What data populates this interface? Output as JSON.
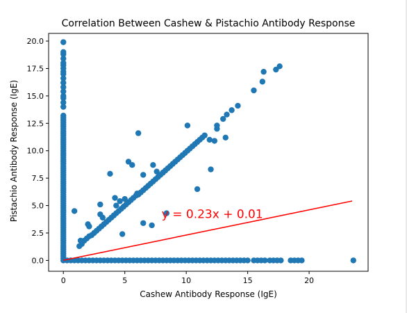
{
  "chart_data": {
    "type": "scatter",
    "title": "Correlation Between Cashew & Pistachio Antibody Response",
    "xlabel": "Cashew Antibody Response (IgE)",
    "ylabel": "Pistachio Antibody Response (IgE)",
    "xlim": [
      -1.2,
      24.8
    ],
    "ylim": [
      -0.99,
      20.7
    ],
    "xticks": [
      0,
      5,
      10,
      15,
      20
    ],
    "yticks": [
      0.0,
      2.5,
      5.0,
      7.5,
      10.0,
      12.5,
      15.0,
      17.5,
      20.0
    ],
    "xtick_labels": [
      "0",
      "5",
      "10",
      "15",
      "20"
    ],
    "ytick_labels": [
      "0.0",
      "2.5",
      "5.0",
      "7.5",
      "10.0",
      "12.5",
      "15.0",
      "17.5",
      "20.0"
    ],
    "point_color": "#1f77b4",
    "fit_line": {
      "slope": 0.23,
      "intercept": 0.01,
      "x_range": [
        0,
        23.5
      ],
      "color": "#ff0000",
      "label": "y = 0.23x + 0.01",
      "label_at": [
        8,
        4.3
      ]
    },
    "points": [
      [
        0,
        0
      ],
      [
        0,
        0.2
      ],
      [
        0,
        0.4
      ],
      [
        0,
        0.6
      ],
      [
        0,
        0.8
      ],
      [
        0,
        1.0
      ],
      [
        0,
        1.2
      ],
      [
        0,
        1.4
      ],
      [
        0,
        1.6
      ],
      [
        0,
        1.8
      ],
      [
        0,
        2.0
      ],
      [
        0,
        2.2
      ],
      [
        0,
        2.4
      ],
      [
        0,
        2.6
      ],
      [
        0,
        2.8
      ],
      [
        0,
        3.0
      ],
      [
        0,
        3.2
      ],
      [
        0,
        3.4
      ],
      [
        0,
        3.6
      ],
      [
        0,
        3.8
      ],
      [
        0,
        4.0
      ],
      [
        0,
        4.2
      ],
      [
        0,
        4.4
      ],
      [
        0,
        4.6
      ],
      [
        0,
        4.8
      ],
      [
        0,
        5.0
      ],
      [
        0,
        5.2
      ],
      [
        0,
        5.4
      ],
      [
        0,
        5.6
      ],
      [
        0,
        5.8
      ],
      [
        0,
        6.0
      ],
      [
        0,
        6.2
      ],
      [
        0,
        6.4
      ],
      [
        0,
        6.6
      ],
      [
        0,
        6.8
      ],
      [
        0,
        7.0
      ],
      [
        0,
        7.2
      ],
      [
        0,
        7.4
      ],
      [
        0,
        7.6
      ],
      [
        0,
        7.8
      ],
      [
        0,
        8.0
      ],
      [
        0,
        8.2
      ],
      [
        0,
        8.4
      ],
      [
        0,
        8.6
      ],
      [
        0,
        8.8
      ],
      [
        0,
        9.0
      ],
      [
        0,
        9.2
      ],
      [
        0,
        9.4
      ],
      [
        0,
        9.6
      ],
      [
        0,
        9.8
      ],
      [
        0,
        10.0
      ],
      [
        0,
        10.2
      ],
      [
        0,
        10.4
      ],
      [
        0,
        10.6
      ],
      [
        0,
        10.8
      ],
      [
        0,
        11.0
      ],
      [
        0,
        11.2
      ],
      [
        0,
        11.4
      ],
      [
        0,
        11.6
      ],
      [
        0,
        11.8
      ],
      [
        0,
        12.0
      ],
      [
        0,
        12.2
      ],
      [
        0,
        12.4
      ],
      [
        0,
        12.6
      ],
      [
        0,
        12.8
      ],
      [
        0,
        13.0
      ],
      [
        0,
        13.2
      ],
      [
        0,
        14.0
      ],
      [
        0,
        14.4
      ],
      [
        0,
        14.8
      ],
      [
        0,
        15.0
      ],
      [
        0,
        15.4
      ],
      [
        0,
        15.8
      ],
      [
        0,
        16.2
      ],
      [
        0,
        16.6
      ],
      [
        0,
        17.0
      ],
      [
        0,
        17.2
      ],
      [
        0,
        17.5
      ],
      [
        0,
        17.8
      ],
      [
        0,
        18.0
      ],
      [
        0,
        18.4
      ],
      [
        0,
        18.8
      ],
      [
        0,
        19.0
      ],
      [
        0,
        19.9
      ],
      [
        0.3,
        0
      ],
      [
        0.6,
        0
      ],
      [
        0.9,
        0
      ],
      [
        1.2,
        0
      ],
      [
        1.5,
        0
      ],
      [
        1.8,
        0
      ],
      [
        2.1,
        0
      ],
      [
        2.4,
        0
      ],
      [
        2.7,
        0
      ],
      [
        3.0,
        0
      ],
      [
        3.3,
        0
      ],
      [
        3.6,
        0
      ],
      [
        3.9,
        0
      ],
      [
        4.2,
        0
      ],
      [
        4.5,
        0
      ],
      [
        4.8,
        0
      ],
      [
        5.1,
        0
      ],
      [
        5.4,
        0
      ],
      [
        5.7,
        0
      ],
      [
        6.0,
        0
      ],
      [
        6.3,
        0
      ],
      [
        6.6,
        0
      ],
      [
        6.9,
        0
      ],
      [
        7.2,
        0
      ],
      [
        7.5,
        0
      ],
      [
        7.8,
        0
      ],
      [
        8.1,
        0
      ],
      [
        8.4,
        0
      ],
      [
        8.7,
        0
      ],
      [
        9.0,
        0
      ],
      [
        9.3,
        0
      ],
      [
        9.6,
        0
      ],
      [
        9.9,
        0
      ],
      [
        10.2,
        0
      ],
      [
        10.5,
        0
      ],
      [
        10.8,
        0
      ],
      [
        11.1,
        0
      ],
      [
        11.4,
        0
      ],
      [
        11.7,
        0
      ],
      [
        12.0,
        0
      ],
      [
        12.3,
        0
      ],
      [
        12.6,
        0
      ],
      [
        12.9,
        0
      ],
      [
        13.2,
        0
      ],
      [
        13.5,
        0
      ],
      [
        13.8,
        0
      ],
      [
        14.1,
        0
      ],
      [
        14.4,
        0
      ],
      [
        14.7,
        0
      ],
      [
        15.0,
        0
      ],
      [
        15.5,
        0
      ],
      [
        15.8,
        0
      ],
      [
        16.1,
        0
      ],
      [
        16.4,
        0
      ],
      [
        16.8,
        0
      ],
      [
        17.1,
        0
      ],
      [
        17.4,
        0
      ],
      [
        17.7,
        0
      ],
      [
        18.5,
        0
      ],
      [
        18.8,
        0
      ],
      [
        19.1,
        0
      ],
      [
        19.4,
        0
      ],
      [
        23.6,
        0
      ],
      [
        1.3,
        1.3
      ],
      [
        1.5,
        1.5
      ],
      [
        1.7,
        1.8
      ],
      [
        1.9,
        2.0
      ],
      [
        2.1,
        2.2
      ],
      [
        2.3,
        2.3
      ],
      [
        2.5,
        2.5
      ],
      [
        2.7,
        2.7
      ],
      [
        2.9,
        2.9
      ],
      [
        3.1,
        3.1
      ],
      [
        3.3,
        3.3
      ],
      [
        3.5,
        3.5
      ],
      [
        3.7,
        3.7
      ],
      [
        3.9,
        3.9
      ],
      [
        4.1,
        4.1
      ],
      [
        4.3,
        4.3
      ],
      [
        4.5,
        4.5
      ],
      [
        4.7,
        4.7
      ],
      [
        4.9,
        4.9
      ],
      [
        5.1,
        5.1
      ],
      [
        5.3,
        5.3
      ],
      [
        5.5,
        5.5
      ],
      [
        5.7,
        5.7
      ],
      [
        5.9,
        5.9
      ],
      [
        6.1,
        6.0
      ],
      [
        6.3,
        6.2
      ],
      [
        6.5,
        6.4
      ],
      [
        6.7,
        6.6
      ],
      [
        6.9,
        6.8
      ],
      [
        7.1,
        7.0
      ],
      [
        7.3,
        7.2
      ],
      [
        7.5,
        7.4
      ],
      [
        7.7,
        7.6
      ],
      [
        7.9,
        7.8
      ],
      [
        8.1,
        8.0
      ],
      [
        8.3,
        8.2
      ],
      [
        8.5,
        8.4
      ],
      [
        8.7,
        8.6
      ],
      [
        8.9,
        8.8
      ],
      [
        9.1,
        9.0
      ],
      [
        9.3,
        9.2
      ],
      [
        9.5,
        9.4
      ],
      [
        9.7,
        9.6
      ],
      [
        9.9,
        9.8
      ],
      [
        10.1,
        10.0
      ],
      [
        10.3,
        10.2
      ],
      [
        10.5,
        10.4
      ],
      [
        10.7,
        10.6
      ],
      [
        10.9,
        10.8
      ],
      [
        11.1,
        11.0
      ],
      [
        11.3,
        11.2
      ],
      [
        11.5,
        11.4
      ],
      [
        12.5,
        12.0
      ],
      [
        13.0,
        12.9
      ],
      [
        13.3,
        13.3
      ],
      [
        13.7,
        13.7
      ],
      [
        14.2,
        14.1
      ],
      [
        0.9,
        4.5
      ],
      [
        1.4,
        1.8
      ],
      [
        2.0,
        3.3
      ],
      [
        2.1,
        3.1
      ],
      [
        3.0,
        5.1
      ],
      [
        3.0,
        4.2
      ],
      [
        3.2,
        3.9
      ],
      [
        3.8,
        7.9
      ],
      [
        4.2,
        5.7
      ],
      [
        4.3,
        5.0
      ],
      [
        4.6,
        5.4
      ],
      [
        4.8,
        2.4
      ],
      [
        5.0,
        5.6
      ],
      [
        5.3,
        9.0
      ],
      [
        5.6,
        8.7
      ],
      [
        6.0,
        6.1
      ],
      [
        6.5,
        3.4
      ],
      [
        6.5,
        7.8
      ],
      [
        6.1,
        11.6
      ],
      [
        7.2,
        3.2
      ],
      [
        7.3,
        8.7
      ],
      [
        7.6,
        8.1
      ],
      [
        8.4,
        4.3
      ],
      [
        8.1,
        8.0
      ],
      [
        10.1,
        12.3
      ],
      [
        10.9,
        6.5
      ],
      [
        11.9,
        11.0
      ],
      [
        12.0,
        8.3
      ],
      [
        12.3,
        10.9
      ],
      [
        12.5,
        12.3
      ],
      [
        13.2,
        11.2
      ],
      [
        15.5,
        15.5
      ],
      [
        16.2,
        16.3
      ],
      [
        16.3,
        17.2
      ],
      [
        17.3,
        17.4
      ],
      [
        17.6,
        17.7
      ]
    ]
  }
}
